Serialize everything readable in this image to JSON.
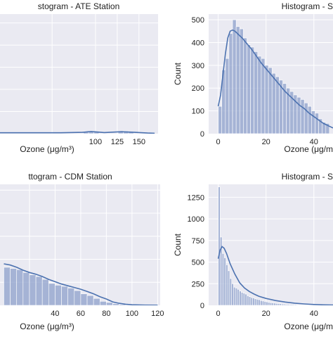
{
  "chart_data": [
    {
      "type": "bar",
      "panel": "top-left",
      "title": "stogram - ATE Station",
      "xlabel": "Ozone (μg/m³)",
      "ylabel": "",
      "xlim": [
        -10,
        172
      ],
      "ylim": [
        0,
        540
      ],
      "xticks": [
        50,
        100,
        125,
        150
      ],
      "xtick_labels": [
        "",
        "100",
        "125",
        "150"
      ],
      "yticks": [
        100,
        200,
        300,
        400,
        500
      ],
      "ytick_labels": [],
      "bars": [
        {
          "x0": 86,
          "x1": 92,
          "value": 10
        },
        {
          "x0": 92,
          "x1": 98,
          "value": 12
        },
        {
          "x0": 98,
          "x1": 104,
          "value": 8
        },
        {
          "x0": 126,
          "x1": 132,
          "value": 9
        },
        {
          "x0": 132,
          "x1": 138,
          "value": 12
        },
        {
          "x0": 138,
          "x1": 144,
          "value": 8
        }
      ],
      "kde": [
        [
          -10,
          4
        ],
        [
          20,
          4
        ],
        [
          60,
          4
        ],
        [
          85,
          6
        ],
        [
          95,
          10
        ],
        [
          110,
          5
        ],
        [
          130,
          9
        ],
        [
          145,
          6
        ],
        [
          160,
          3
        ],
        [
          168,
          2
        ]
      ]
    },
    {
      "type": "bar",
      "panel": "top-right",
      "title": "Histogram - S",
      "xlabel": "Ozone (μg/m",
      "ylabel": "Count",
      "xlim": [
        -4,
        48
      ],
      "ylim": [
        0,
        525
      ],
      "xticks": [
        0,
        20,
        40
      ],
      "xtick_labels": [
        "0",
        "20",
        "40"
      ],
      "yticks": [
        0,
        100,
        200,
        300,
        400,
        500
      ],
      "ytick_labels": [
        "0",
        "100",
        "200",
        "300",
        "400",
        "500"
      ],
      "bin_start": 0,
      "bin_width": 1.5,
      "values": [
        120,
        280,
        330,
        440,
        500,
        470,
        460,
        420,
        390,
        380,
        360,
        340,
        330,
        300,
        290,
        265,
        250,
        235,
        220,
        200,
        185,
        170,
        160,
        150,
        135,
        120,
        100,
        90,
        65,
        50,
        45
      ],
      "kde": [
        [
          0,
          120
        ],
        [
          1,
          170
        ],
        [
          2,
          260
        ],
        [
          3,
          350
        ],
        [
          4,
          420
        ],
        [
          5,
          450
        ],
        [
          6,
          455
        ],
        [
          7,
          450
        ],
        [
          8,
          440
        ],
        [
          10,
          420
        ],
        [
          12,
          395
        ],
        [
          14,
          370
        ],
        [
          16,
          340
        ],
        [
          18,
          310
        ],
        [
          20,
          285
        ],
        [
          22,
          260
        ],
        [
          24,
          235
        ],
        [
          26,
          210
        ],
        [
          28,
          185
        ],
        [
          30,
          165
        ],
        [
          32,
          145
        ],
        [
          34,
          125
        ],
        [
          36,
          110
        ],
        [
          38,
          90
        ],
        [
          40,
          75
        ],
        [
          42,
          60
        ],
        [
          44,
          45
        ],
        [
          46,
          35
        ],
        [
          48,
          25
        ]
      ]
    },
    {
      "type": "bar",
      "panel": "bottom-left",
      "title": "ttogram - CDM Station",
      "xlabel": "Ozone (μg/m³)",
      "ylabel": "",
      "xlim": [
        -3,
        122
      ],
      "ylim": [
        0,
        1050
      ],
      "xticks": [
        20,
        40,
        60,
        80,
        100,
        120
      ],
      "xtick_labels": [
        "",
        "40",
        "60",
        "80",
        "100",
        "120"
      ],
      "yticks": [
        200,
        400,
        600,
        800,
        1000
      ],
      "ytick_labels": [],
      "bin_start": 0,
      "bin_width": 5,
      "values": [
        330,
        320,
        310,
        285,
        265,
        250,
        225,
        190,
        175,
        165,
        150,
        128,
        100,
        85,
        60,
        35,
        25,
        15,
        8,
        4,
        2,
        1,
        1,
        0
      ],
      "kde": [
        [
          0,
          360
        ],
        [
          5,
          350
        ],
        [
          10,
          330
        ],
        [
          15,
          305
        ],
        [
          20,
          285
        ],
        [
          25,
          270
        ],
        [
          30,
          250
        ],
        [
          35,
          225
        ],
        [
          40,
          205
        ],
        [
          45,
          185
        ],
        [
          50,
          170
        ],
        [
          55,
          155
        ],
        [
          60,
          140
        ],
        [
          65,
          120
        ],
        [
          70,
          100
        ],
        [
          75,
          75
        ],
        [
          80,
          55
        ],
        [
          85,
          30
        ],
        [
          90,
          18
        ],
        [
          95,
          10
        ],
        [
          100,
          5
        ],
        [
          110,
          2
        ],
        [
          120,
          1
        ]
      ]
    },
    {
      "type": "bar",
      "panel": "bottom-right",
      "title": "Histogram - S",
      "xlabel": "Ozone (μg/m",
      "ylabel": "Count",
      "xlim": [
        -4,
        48
      ],
      "ylim": [
        0,
        1400
      ],
      "xticks": [
        0,
        20,
        40
      ],
      "xtick_labels": [
        "0",
        "20",
        "40"
      ],
      "yticks": [
        0,
        250,
        500,
        750,
        1000,
        1250
      ],
      "ytick_labels": [
        "0",
        "250",
        "500",
        "750",
        "1000",
        "1250"
      ],
      "bin_start": 0,
      "bin_width": 0.8,
      "values": [
        1370,
        790,
        600,
        550,
        470,
        400,
        310,
        250,
        210,
        200,
        185,
        165,
        150,
        140,
        130,
        110,
        100,
        90,
        85,
        75,
        70,
        65,
        55,
        50,
        45,
        40,
        35,
        30,
        28,
        25,
        22,
        20,
        18,
        15,
        15,
        12,
        12,
        10,
        10,
        8,
        8,
        6,
        6,
        5,
        5,
        4,
        4,
        3,
        3,
        3,
        2,
        2,
        2,
        2,
        2,
        1,
        1,
        1
      ],
      "kde": [
        [
          0,
          540
        ],
        [
          0.8,
          640
        ],
        [
          1.6,
          680
        ],
        [
          2.5,
          660
        ],
        [
          3.5,
          600
        ],
        [
          5,
          480
        ],
        [
          7,
          360
        ],
        [
          9,
          260
        ],
        [
          11,
          200
        ],
        [
          13,
          160
        ],
        [
          15,
          130
        ],
        [
          17,
          105
        ],
        [
          20,
          80
        ],
        [
          24,
          55
        ],
        [
          28,
          38
        ],
        [
          32,
          25
        ],
        [
          36,
          16
        ],
        [
          40,
          10
        ],
        [
          44,
          6
        ],
        [
          48,
          3
        ]
      ]
    }
  ]
}
